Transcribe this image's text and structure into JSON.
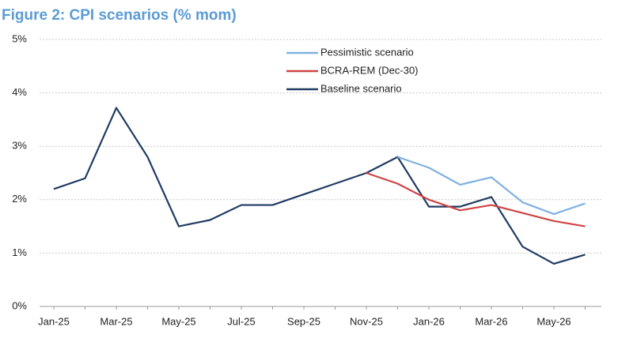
{
  "chart_data": {
    "type": "line",
    "title": "Figure 2: CPI scenarios (% mom)",
    "categories": [
      "Jan-25",
      null,
      "Mar-25",
      null,
      "May-25",
      null,
      "Jul-25",
      null,
      "Sep-25",
      null,
      "Nov-25",
      null,
      "Jan-26",
      null,
      "Mar-26",
      null,
      "May-26",
      null
    ],
    "series": [
      {
        "name": "Pessimistic scenario",
        "color": "#7fb2e0",
        "values": [
          null,
          null,
          null,
          null,
          null,
          null,
          null,
          null,
          null,
          null,
          null,
          2.8,
          2.6,
          2.28,
          2.42,
          1.95,
          1.73,
          1.93
        ]
      },
      {
        "name": "BCRA-REM (Dec-30)",
        "color": "#d04444",
        "values": [
          null,
          null,
          null,
          null,
          null,
          null,
          null,
          null,
          null,
          null,
          2.5,
          2.3,
          2.0,
          1.8,
          1.9,
          1.75,
          1.6,
          1.5
        ]
      },
      {
        "name": "Baseline scenario",
        "color": "#1f3b63",
        "values": [
          2.2,
          2.4,
          3.72,
          2.8,
          1.5,
          1.62,
          1.9,
          1.9,
          2.1,
          2.3,
          2.5,
          2.8,
          1.87,
          1.87,
          2.05,
          1.12,
          0.8,
          0.97
        ]
      }
    ],
    "ylim": [
      0,
      5
    ],
    "yticks": [
      {
        "value": 0,
        "label": "0%"
      },
      {
        "value": 1,
        "label": "1%"
      },
      {
        "value": 2,
        "label": "2%"
      },
      {
        "value": 3,
        "label": "3%"
      },
      {
        "value": 4,
        "label": "4%"
      },
      {
        "value": 5,
        "label": "5%"
      }
    ],
    "grid": true
  }
}
